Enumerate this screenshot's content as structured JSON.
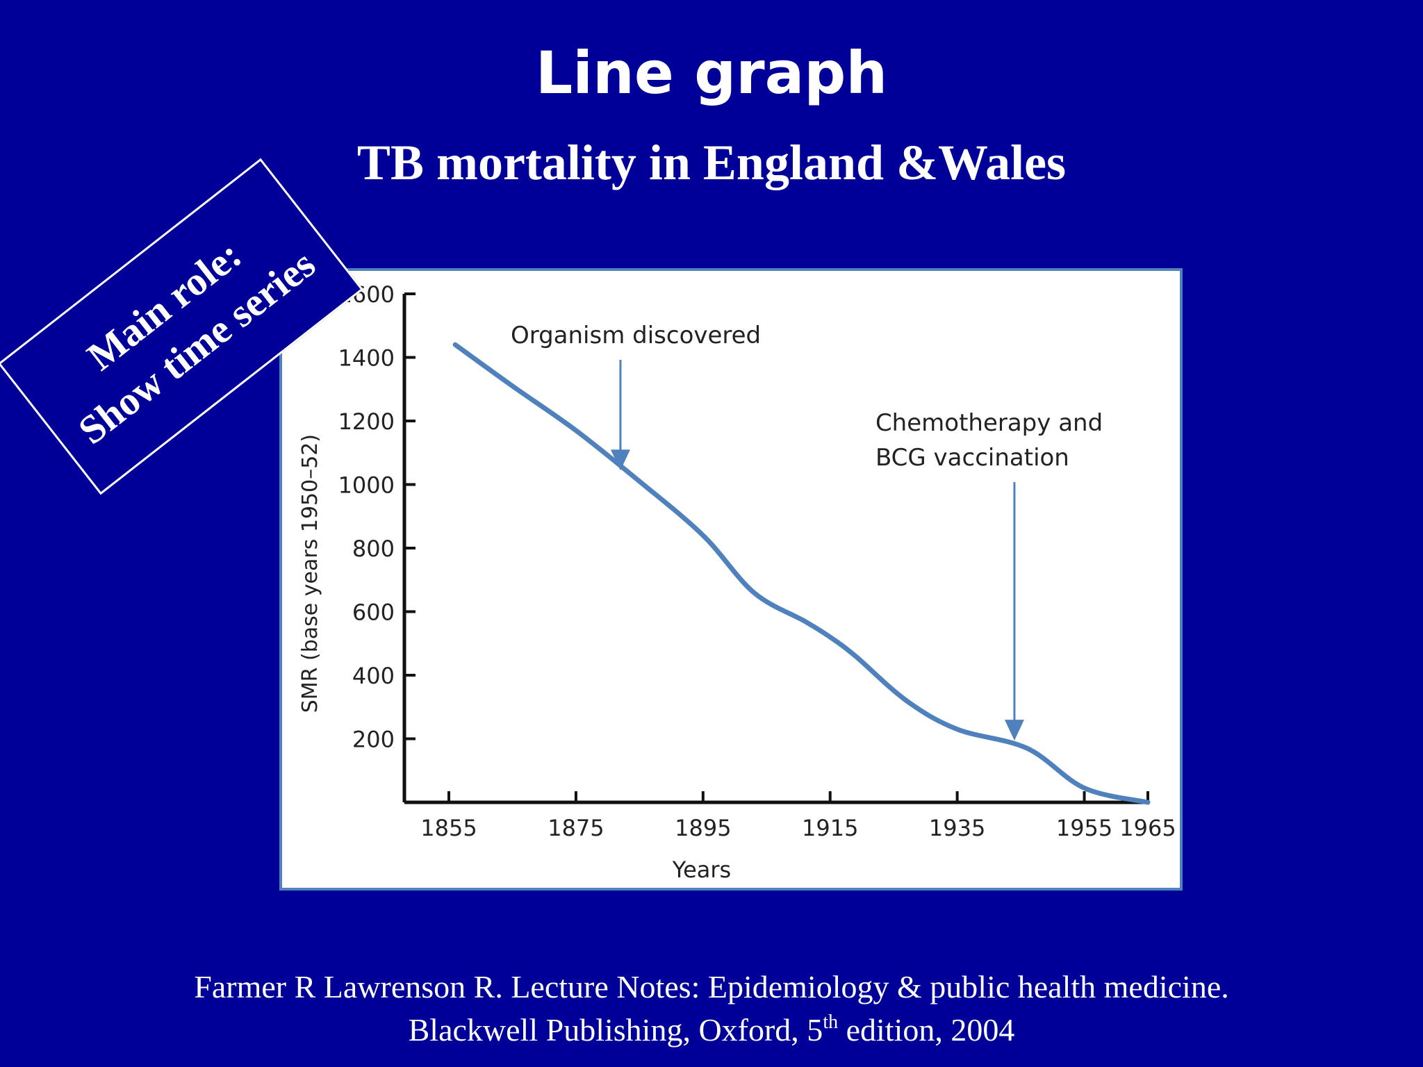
{
  "slide": {
    "title": "Line graph",
    "subtitle": "TB mortality in England &Wales",
    "stamp_line1": "Main role:",
    "stamp_line2": "Show time series",
    "reference_line1": "Farmer R   Lawrenson R. Lecture Notes: Epidemiology & public health medicine.",
    "reference_line2_a": "Blackwell Publishing, Oxford, 5",
    "reference_line2_sup": "th",
    "reference_line2_b": " edition, 2004"
  },
  "colors": {
    "background": "#000099",
    "line": "#4f81bd",
    "panel_border": "#4f81bd"
  },
  "chart_data": {
    "type": "line",
    "xlabel": "Years",
    "ylabel": "SMR (base years 1950–52)",
    "x_ticks": [
      1855,
      1875,
      1895,
      1915,
      1935,
      1955,
      1965
    ],
    "y_ticks": [
      200,
      400,
      600,
      800,
      1000,
      1200,
      1400,
      1600
    ],
    "y_tick_labels": [
      "200",
      "400",
      "600",
      "800",
      "1000",
      "1200",
      "1400",
      "1600"
    ],
    "xlim": [
      1848,
      1965
    ],
    "ylim": [
      0,
      1600
    ],
    "grid": false,
    "series": [
      {
        "x": [
          1856,
          1865,
          1875,
          1885,
          1895,
          1903,
          1911,
          1915,
          1919,
          1927,
          1935,
          1946,
          1955,
          1965
        ],
        "y": [
          1440,
          1310,
          1170,
          1010,
          840,
          660,
          570,
          520,
          460,
          320,
          230,
          170,
          45,
          0
        ]
      }
    ],
    "annotations": [
      {
        "lines": [
          "Organism discovered"
        ],
        "x": 1882,
        "y": 1040
      },
      {
        "lines": [
          "Chemotherapy and",
          "BCG vaccination"
        ],
        "x": 1944,
        "y": 190
      }
    ]
  }
}
